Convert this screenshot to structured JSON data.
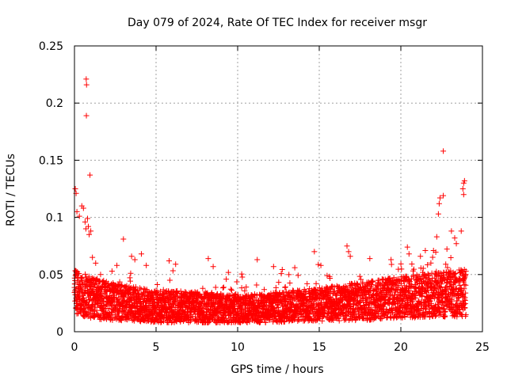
{
  "chart_data": {
    "type": "scatter",
    "title": "Day 079 of 2024, Rate Of TEC Index for receiver msgr",
    "xlabel": "GPS time / hours",
    "ylabel": "ROTI / TECUs",
    "xlim": [
      0,
      25
    ],
    "ylim": [
      0,
      0.25
    ],
    "xticks": [
      0,
      5,
      10,
      15,
      20,
      25
    ],
    "xtick_labels": [
      "0",
      "5",
      "10",
      "15",
      "20",
      "25"
    ],
    "yticks": [
      0,
      0.05,
      0.1,
      0.15,
      0.2,
      0.25
    ],
    "ytick_labels": [
      "0",
      "0.05",
      "0.1",
      "0.15",
      "0.2",
      "0.25"
    ],
    "grid": true,
    "marker": "+",
    "color": "#ff0000",
    "series": [
      {
        "name": "ROTI",
        "points": [
          [
            0.72,
            0.221
          ],
          [
            0.74,
            0.216
          ],
          [
            0.73,
            0.189
          ],
          [
            0.95,
            0.137
          ],
          [
            0.05,
            0.125
          ],
          [
            0.1,
            0.121
          ],
          [
            0.15,
            0.105
          ],
          [
            0.3,
            0.101
          ],
          [
            0.45,
            0.11
          ],
          [
            0.55,
            0.108
          ],
          [
            0.65,
            0.096
          ],
          [
            0.7,
            0.09
          ],
          [
            0.8,
            0.099
          ],
          [
            0.85,
            0.092
          ],
          [
            0.9,
            0.085
          ],
          [
            1.0,
            0.088
          ],
          [
            1.1,
            0.065
          ],
          [
            1.3,
            0.06
          ],
          [
            1.6,
            0.05
          ],
          [
            2.3,
            0.053
          ],
          [
            2.6,
            0.058
          ],
          [
            3.0,
            0.081
          ],
          [
            3.5,
            0.066
          ],
          [
            3.7,
            0.063
          ],
          [
            4.1,
            0.068
          ],
          [
            4.4,
            0.058
          ],
          [
            5.8,
            0.062
          ],
          [
            6.2,
            0.059
          ],
          [
            8.2,
            0.064
          ],
          [
            8.5,
            0.057
          ],
          [
            9.3,
            0.046
          ],
          [
            11.2,
            0.063
          ],
          [
            12.2,
            0.057
          ],
          [
            13.5,
            0.056
          ],
          [
            14.7,
            0.07
          ],
          [
            15.1,
            0.058
          ],
          [
            16.7,
            0.075
          ],
          [
            16.8,
            0.07
          ],
          [
            16.9,
            0.066
          ],
          [
            18.1,
            0.064
          ],
          [
            19.4,
            0.063
          ],
          [
            20.4,
            0.074
          ],
          [
            20.5,
            0.068
          ],
          [
            21.2,
            0.066
          ],
          [
            21.5,
            0.071
          ],
          [
            22.0,
            0.071
          ],
          [
            22.2,
            0.083
          ],
          [
            22.3,
            0.103
          ],
          [
            22.35,
            0.112
          ],
          [
            22.4,
            0.117
          ],
          [
            22.6,
            0.119
          ],
          [
            22.6,
            0.158
          ],
          [
            23.1,
            0.088
          ],
          [
            23.3,
            0.082
          ],
          [
            23.4,
            0.077
          ],
          [
            23.8,
            0.125
          ],
          [
            23.85,
            0.13
          ],
          [
            23.9,
            0.132
          ],
          [
            23.85,
            0.12
          ],
          [
            23.7,
            0.088
          ]
        ],
        "baseline_profile": [
          [
            0,
            0.035,
            0.03
          ],
          [
            1,
            0.03,
            0.028
          ],
          [
            2,
            0.027,
            0.026
          ],
          [
            3,
            0.025,
            0.024
          ],
          [
            4,
            0.024,
            0.023
          ],
          [
            5,
            0.022,
            0.022
          ],
          [
            6,
            0.022,
            0.022
          ],
          [
            7,
            0.021,
            0.021
          ],
          [
            8,
            0.021,
            0.021
          ],
          [
            9,
            0.02,
            0.02
          ],
          [
            10,
            0.02,
            0.019
          ],
          [
            11,
            0.02,
            0.019
          ],
          [
            12,
            0.021,
            0.02
          ],
          [
            13,
            0.022,
            0.021
          ],
          [
            14,
            0.023,
            0.022
          ],
          [
            15,
            0.024,
            0.023
          ],
          [
            16,
            0.025,
            0.024
          ],
          [
            17,
            0.026,
            0.025
          ],
          [
            18,
            0.027,
            0.026
          ],
          [
            19,
            0.029,
            0.027
          ],
          [
            20,
            0.03,
            0.028
          ],
          [
            21,
            0.031,
            0.029
          ],
          [
            22,
            0.032,
            0.03
          ],
          [
            23,
            0.033,
            0.031
          ],
          [
            24,
            0.034,
            0.032
          ]
        ]
      }
    ]
  }
}
